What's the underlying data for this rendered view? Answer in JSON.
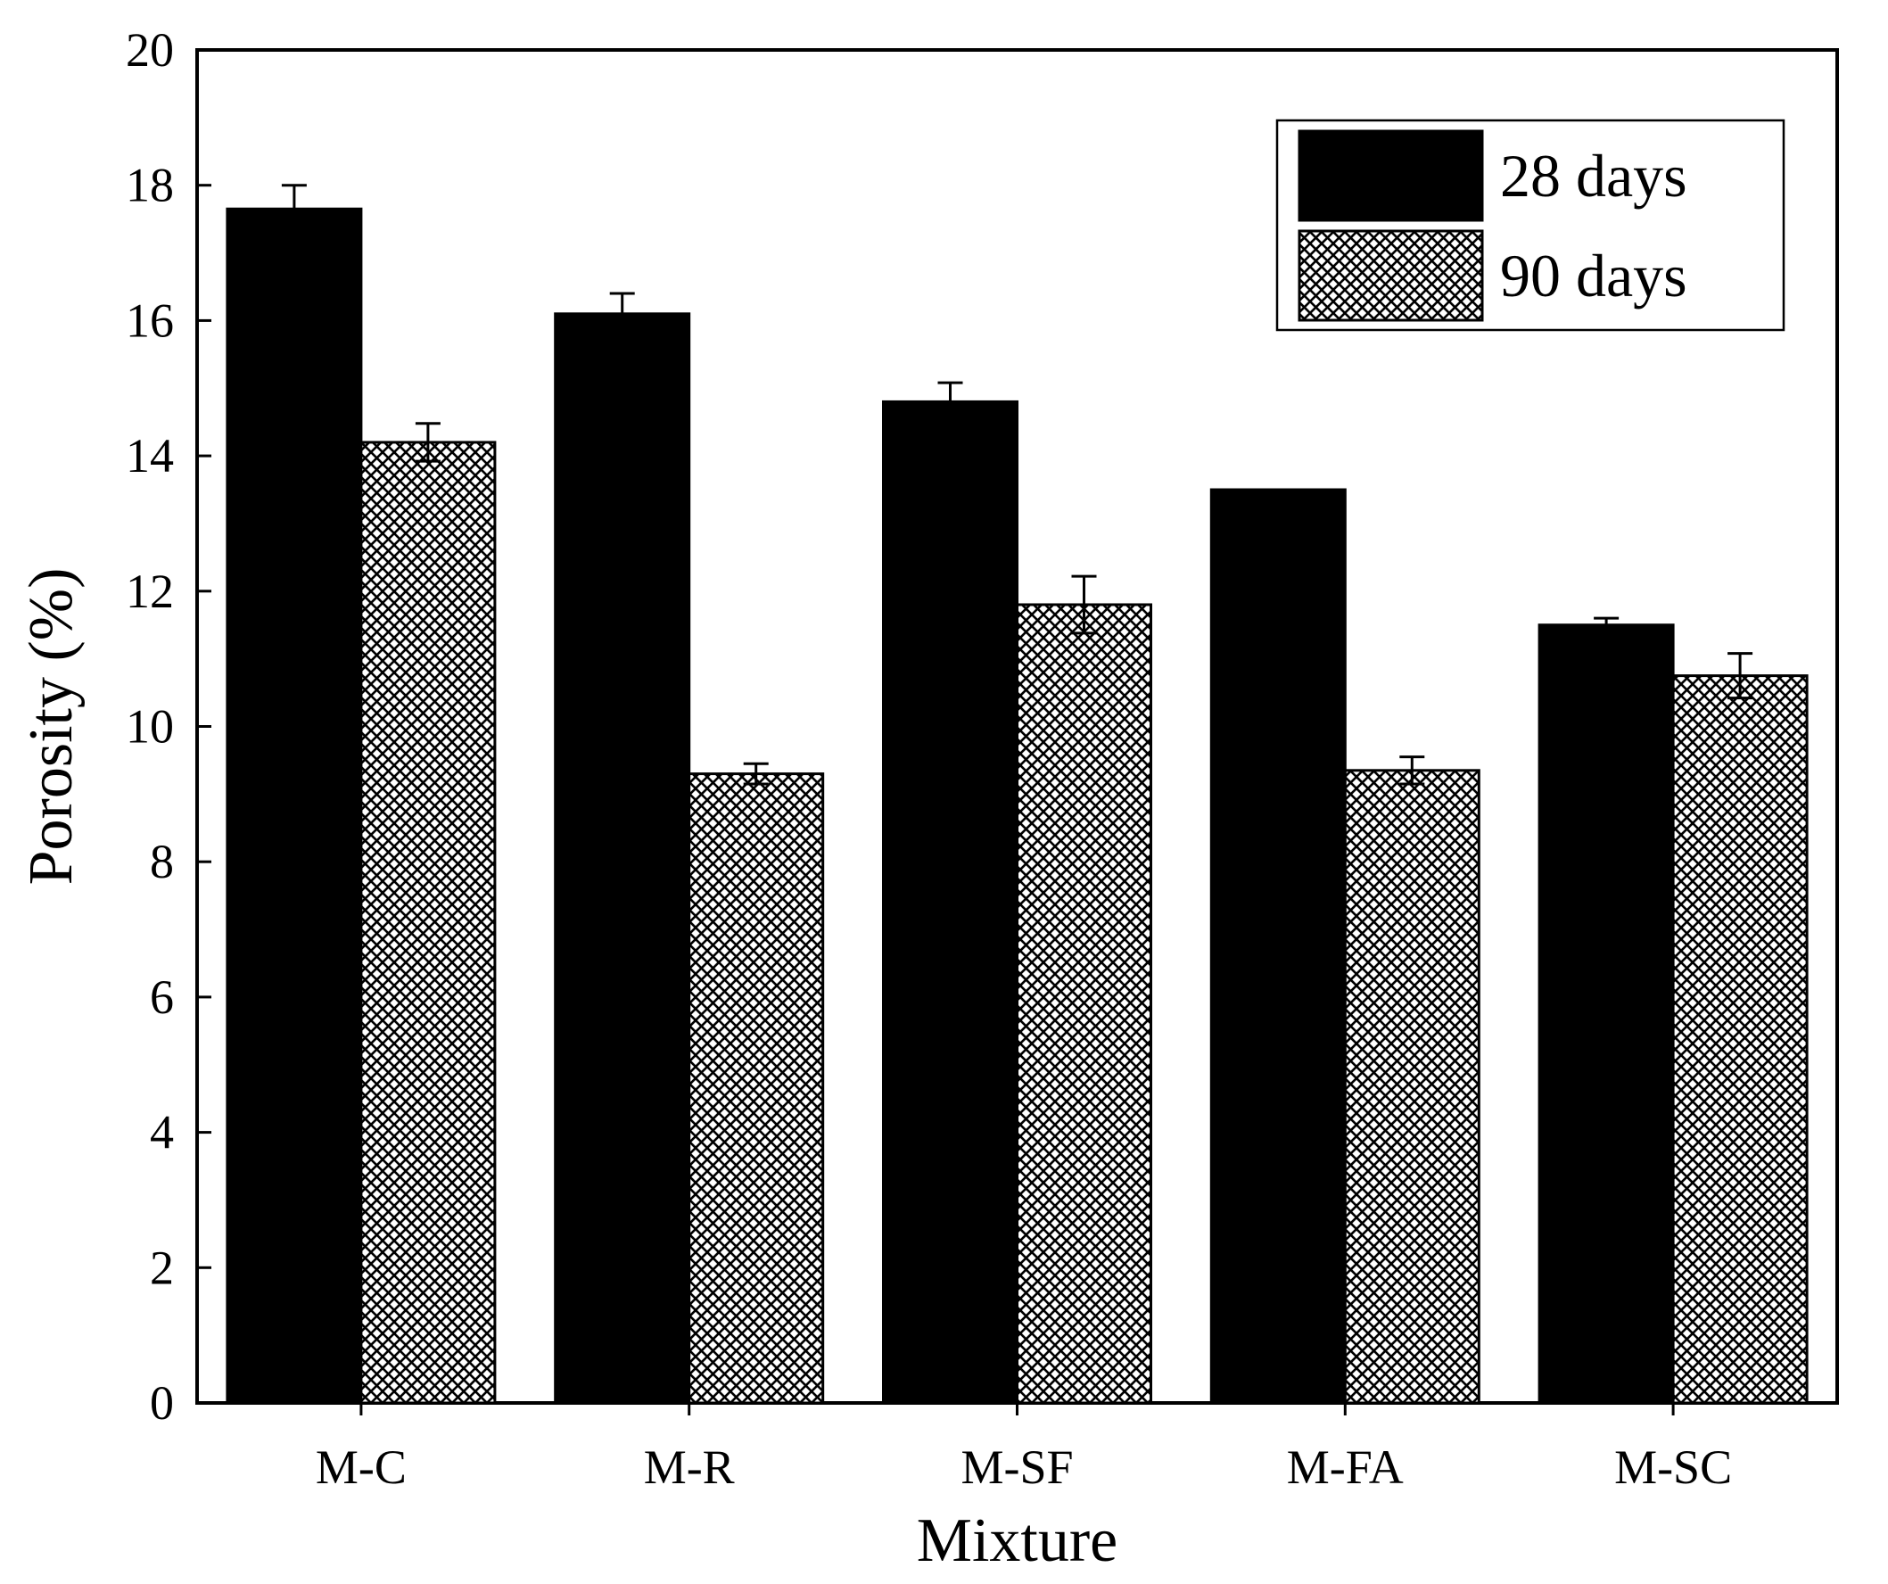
{
  "chart_data": {
    "type": "bar",
    "title": "",
    "xlabel": "Mixture",
    "ylabel": "Porosity (%)",
    "ylim": [
      0,
      20
    ],
    "yticks": [
      0,
      2,
      4,
      6,
      8,
      10,
      12,
      14,
      16,
      18,
      20
    ],
    "categories": [
      "M-C",
      "M-R",
      "M-SF",
      "M-FA",
      "M-SC"
    ],
    "series": [
      {
        "name": "28 days",
        "fill": "solid",
        "color": "#000000",
        "values": [
          17.65,
          16.1,
          14.8,
          13.5,
          11.5
        ],
        "errors": [
          0.35,
          0.3,
          0.28,
          0.0,
          0.1
        ]
      },
      {
        "name": "90 days",
        "fill": "crosshatch",
        "color": "#000000",
        "values": [
          14.2,
          9.3,
          11.8,
          9.35,
          10.75
        ],
        "errors": [
          0.28,
          0.15,
          0.42,
          0.2,
          0.33
        ]
      }
    ],
    "legend_position": "top-right",
    "grid": false
  }
}
